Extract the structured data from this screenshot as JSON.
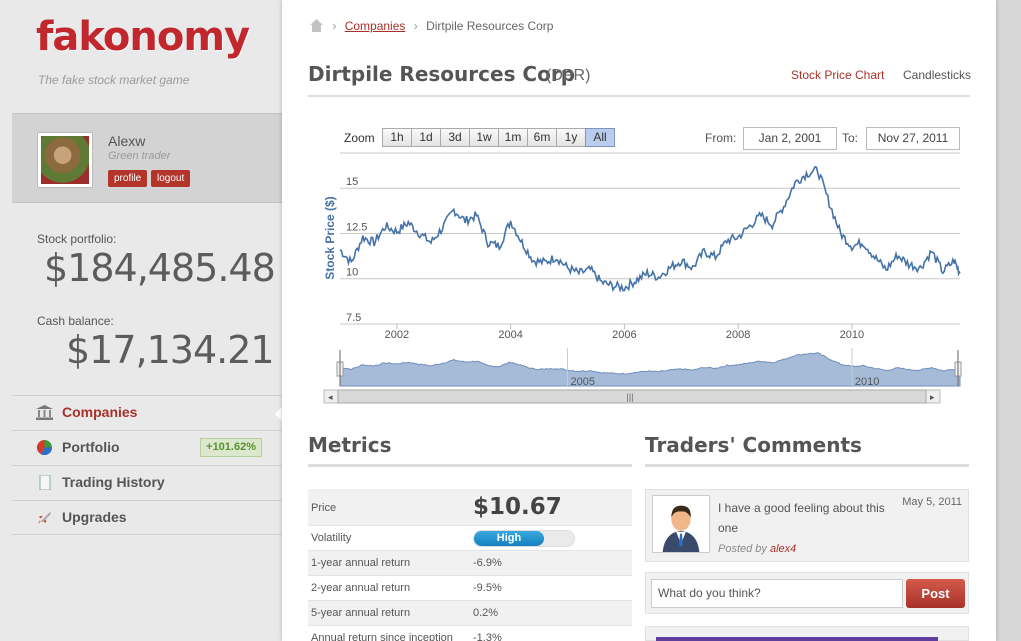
{
  "brand": {
    "name": "fakonomy",
    "tagline": "The fake stock market game"
  },
  "user": {
    "name": "Alexw",
    "rank": "Green trader",
    "profile_label": "profile",
    "logout_label": "logout"
  },
  "portfolio": {
    "label": "Stock portfolio:",
    "value": "$184,485.48"
  },
  "cash": {
    "label": "Cash balance:",
    "value": "$17,134.21"
  },
  "nav": {
    "items": [
      {
        "label": "Companies",
        "icon": "bank-icon",
        "active": true
      },
      {
        "label": "Portfolio",
        "icon": "pie-chart-icon",
        "badge": "+101.62%"
      },
      {
        "label": "Trading History",
        "icon": "document-icon"
      },
      {
        "label": "Upgrades",
        "icon": "rocket-icon"
      }
    ]
  },
  "breadcrumb": {
    "home_icon": "home-icon",
    "link": "Companies",
    "current": "Dirtpile Resources Corp"
  },
  "company": {
    "name": "Dirtpile Resources Corp",
    "ticker": "(DPR)"
  },
  "view_tabs": {
    "stock_price_chart": "Stock Price Chart",
    "candlesticks": "Candlesticks"
  },
  "chart_toolbar": {
    "zoom_label": "Zoom",
    "zoom_options": [
      "1h",
      "1d",
      "3d",
      "1w",
      "1m",
      "6m",
      "1y",
      "All"
    ],
    "selected": "All",
    "from_label": "From:",
    "from_value": "Jan 2, 2001",
    "to_label": "To:",
    "to_value": "Nov 27, 2011"
  },
  "chart_data": {
    "type": "line",
    "ylabel": "Stock Price ($)",
    "xlabel": "",
    "ylim": [
      7.5,
      17
    ],
    "yticks": [
      7.5,
      10,
      12.5,
      15
    ],
    "xlim": [
      2001.0,
      2011.9
    ],
    "xticks": [
      2002,
      2004,
      2006,
      2008,
      2010
    ],
    "grid": true,
    "line_color": "#4572a7",
    "series": [
      {
        "x": [
          2001.0,
          2001.2,
          2001.4,
          2001.6,
          2001.8,
          2002.0,
          2002.2,
          2002.4,
          2002.6,
          2002.8,
          2003.0,
          2003.2,
          2003.4,
          2003.6,
          2003.8,
          2004.0,
          2004.2,
          2004.4,
          2004.6,
          2004.8,
          2005.0,
          2005.2,
          2005.4,
          2005.6,
          2005.8,
          2006.0,
          2006.2,
          2006.4,
          2006.6,
          2006.8,
          2007.0,
          2007.2,
          2007.4,
          2007.6,
          2007.8,
          2008.0,
          2008.2,
          2008.4,
          2008.6,
          2008.8,
          2009.0,
          2009.2,
          2009.4,
          2009.6,
          2009.8,
          2010.0,
          2010.2,
          2010.4,
          2010.6,
          2010.8,
          2011.0,
          2011.2,
          2011.4,
          2011.6,
          2011.8,
          2011.9
        ],
        "y": [
          11.6,
          10.9,
          12.3,
          12.0,
          12.9,
          12.6,
          13.1,
          12.5,
          12.0,
          12.8,
          13.8,
          13.2,
          13.5,
          12.0,
          11.8,
          13.2,
          12.0,
          11.0,
          10.9,
          11.2,
          10.6,
          10.3,
          10.5,
          9.8,
          9.6,
          9.5,
          9.9,
          10.3,
          10.1,
          10.6,
          11.0,
          10.6,
          11.5,
          11.2,
          12.1,
          12.3,
          12.9,
          13.5,
          13.0,
          14.0,
          15.3,
          15.8,
          16.0,
          14.2,
          12.5,
          11.8,
          12.0,
          11.2,
          10.5,
          11.3,
          10.8,
          10.6,
          11.5,
          10.4,
          11.0,
          10.3
        ]
      }
    ],
    "navigator": {
      "labels": [
        "2005",
        "2010"
      ]
    }
  },
  "metrics": {
    "title": "Metrics",
    "price_label": "Price",
    "price_value": "$10.67",
    "volatility_label": "Volatility",
    "volatility_value": "High",
    "volatility_level": 0.7,
    "volatility_color": "#1580c0",
    "rows": [
      {
        "label": "1-year annual return",
        "value": "-6.9%"
      },
      {
        "label": "2-year annual return",
        "value": "-9.5%"
      },
      {
        "label": "5-year annual return",
        "value": "0.2%"
      },
      {
        "label": "Annual return since inception",
        "value": "-1.3%"
      }
    ]
  },
  "comments": {
    "title": "Traders' Comments",
    "items": [
      {
        "text": "I have a good feeling about this one",
        "date": "May 5, 2011",
        "posted_by_prefix": "Posted by",
        "author": "alex4"
      }
    ],
    "input_placeholder": "What do you think?",
    "post_label": "Post"
  }
}
